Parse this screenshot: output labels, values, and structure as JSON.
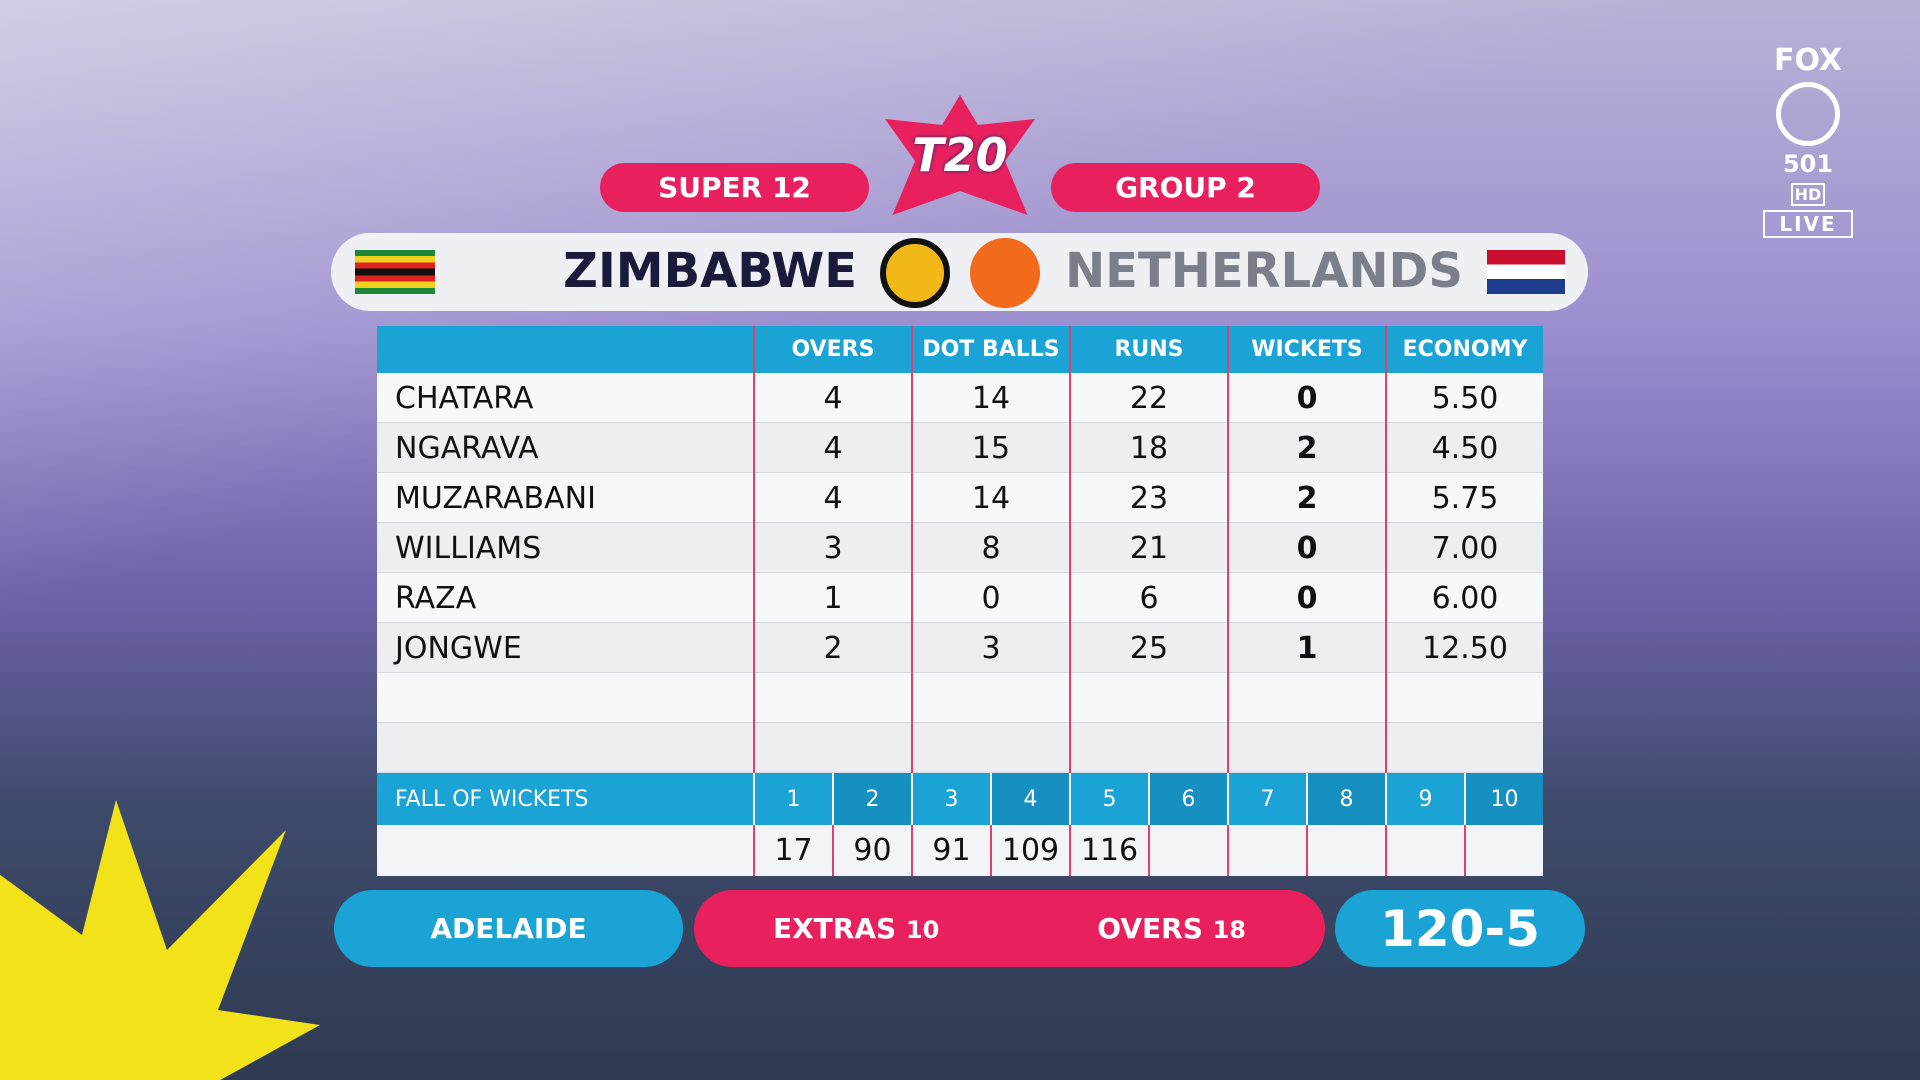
{
  "header": {
    "logo": "T20",
    "tags": [
      "SUPER 12",
      "GROUP 2"
    ]
  },
  "teams": [
    "ZIMBABWE",
    "NETHERLANDS"
  ],
  "table": {
    "columns": [
      "OVERS",
      "DOT BALLS",
      "RUNS",
      "WICKETS",
      "ECONOMY"
    ],
    "rows": [
      [
        "CHATARA",
        "4",
        "14",
        "22",
        "0",
        "5.50"
      ],
      [
        "NGARAVA",
        "4",
        "15",
        "18",
        "2",
        "4.50"
      ],
      [
        "MUZARABANI",
        "4",
        "14",
        "23",
        "2",
        "5.75"
      ],
      [
        "WILLIAMS",
        "3",
        "8",
        "21",
        "0",
        "7.00"
      ],
      [
        "RAZA",
        "1",
        "0",
        "6",
        "0",
        "6.00"
      ],
      [
        "JONGWE",
        "2",
        "3",
        "25",
        "1",
        "12.50"
      ]
    ]
  },
  "fall_of_wickets": {
    "label": "FALL OF WICKETS",
    "wickets": [
      "1",
      "2",
      "3",
      "4",
      "5",
      "6",
      "7",
      "8",
      "9",
      "10"
    ],
    "scores": [
      "17",
      "90",
      "91",
      "109",
      "116"
    ]
  },
  "footer": {
    "venue": "ADELAIDE",
    "extras_label": "EXTRAS",
    "extras": "10",
    "overs_label": "OVERS",
    "overs": "18",
    "score": "120-5"
  },
  "channel": {
    "brand": "FOX",
    "number": "501",
    "quality": "HD",
    "status": "LIVE"
  }
}
